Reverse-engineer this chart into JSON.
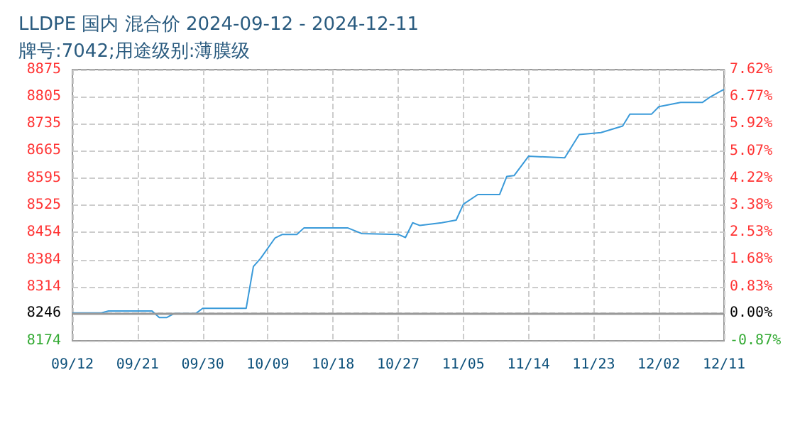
{
  "chart_data": {
    "type": "line",
    "title": "LLDPE 国内 混合价 2024-09-12 - 2024-12-11",
    "subtitle": "牌号:7042;用途级别:薄膜级",
    "x": [
      "2024-09-12",
      "2024-09-16",
      "2024-09-17",
      "2024-09-23",
      "2024-09-24",
      "2024-09-25",
      "2024-09-26",
      "2024-09-29",
      "2024-09-30",
      "2024-10-06",
      "2024-10-07",
      "2024-10-08",
      "2024-10-10",
      "2024-10-11",
      "2024-10-13",
      "2024-10-14",
      "2024-10-20",
      "2024-10-22",
      "2024-10-27",
      "2024-10-28",
      "2024-10-29",
      "2024-10-30",
      "2024-11-02",
      "2024-11-04",
      "2024-11-05",
      "2024-11-07",
      "2024-11-10",
      "2024-11-11",
      "2024-11-12",
      "2024-11-14",
      "2024-11-19",
      "2024-11-21",
      "2024-11-24",
      "2024-11-27",
      "2024-11-28",
      "2024-12-01",
      "2024-12-02",
      "2024-12-05",
      "2024-12-08",
      "2024-12-09",
      "2024-12-11"
    ],
    "series": [
      {
        "color": "#3a9ad9",
        "values": [
          8246,
          8246,
          8251,
          8251,
          8234,
          8234,
          8244,
          8244,
          8258,
          8258,
          8366,
          8387,
          8440,
          8449,
          8449,
          8466,
          8466,
          8451,
          8449,
          8441,
          8479,
          8472,
          8479,
          8486,
          8527,
          8552,
          8552,
          8599,
          8601,
          8651,
          8647,
          8707,
          8712,
          8729,
          8760,
          8760,
          8779,
          8790,
          8790,
          8803,
          8824
        ]
      }
    ],
    "xlim": [
      "2024-09-12",
      "2024-12-11"
    ],
    "xticks": [
      {
        "value": "2024-09-12",
        "label": "09/12"
      },
      {
        "value": "2024-09-21",
        "label": "09/21"
      },
      {
        "value": "2024-09-30",
        "label": "09/30"
      },
      {
        "value": "2024-10-09",
        "label": "10/09"
      },
      {
        "value": "2024-10-18",
        "label": "10/18"
      },
      {
        "value": "2024-10-27",
        "label": "10/27"
      },
      {
        "value": "2024-11-05",
        "label": "11/05"
      },
      {
        "value": "2024-11-14",
        "label": "11/14"
      },
      {
        "value": "2024-11-23",
        "label": "11/23"
      },
      {
        "value": "2024-12-02",
        "label": "12/02"
      },
      {
        "value": "2024-12-11",
        "label": "12/11"
      }
    ],
    "ylim": [
      8174,
      8875
    ],
    "yticks": [
      8174,
      8246,
      8314,
      8384,
      8454,
      8525,
      8595,
      8665,
      8735,
      8805,
      8875
    ],
    "y2lim": [
      -0.87,
      7.62
    ],
    "y2ticks": [
      {
        "value": -0.87,
        "label": "-0.87%"
      },
      {
        "value": 0,
        "label": "0.00%"
      },
      {
        "value": 0.83,
        "label": "0.83%"
      },
      {
        "value": 1.68,
        "label": "1.68%"
      },
      {
        "value": 2.53,
        "label": "2.53%"
      },
      {
        "value": 3.38,
        "label": "3.38%"
      },
      {
        "value": 4.22,
        "label": "4.22%"
      },
      {
        "value": 5.07,
        "label": "5.07%"
      },
      {
        "value": 5.92,
        "label": "5.92%"
      },
      {
        "value": 6.77,
        "label": "6.77%"
      },
      {
        "value": 7.62,
        "label": "7.62%"
      }
    ],
    "ref_lines": [
      {
        "axis": "y",
        "value": 8246,
        "color": "#999999"
      }
    ],
    "grid": true,
    "marker": "none",
    "line_style": "solid"
  }
}
